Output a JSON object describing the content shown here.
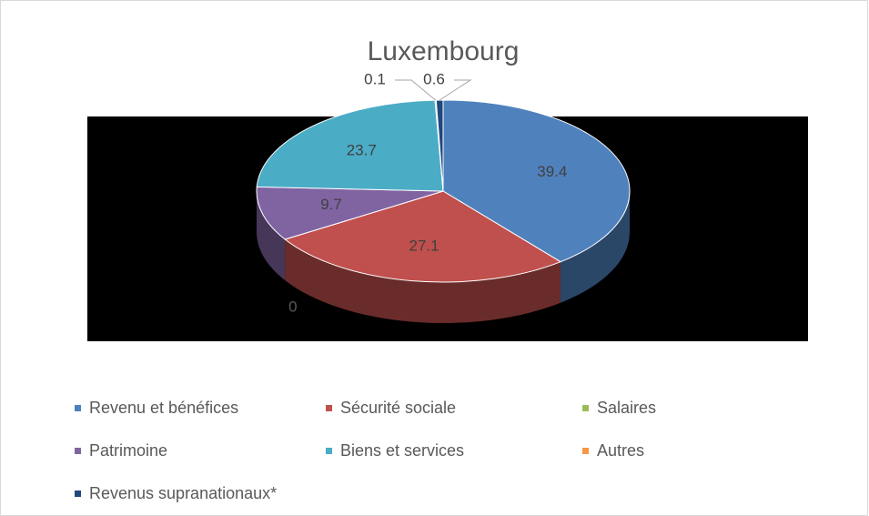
{
  "chart_data": {
    "type": "pie",
    "title": "Luxembourg",
    "categories": [
      "Revenu et bénéfices",
      "Sécurité sociale",
      "Salaires",
      "Patrimoine",
      "Biens et services",
      "Autres",
      "Revenus supranationaux*"
    ],
    "values": [
      39.4,
      27.1,
      0,
      9.7,
      23.7,
      0.1,
      0.6
    ],
    "colors": [
      "#4f81bd",
      "#c0504d",
      "#9bbb59",
      "#8064a2",
      "#4bacc6",
      "#f79646",
      "#1f497d"
    ],
    "legend": "bottom"
  }
}
